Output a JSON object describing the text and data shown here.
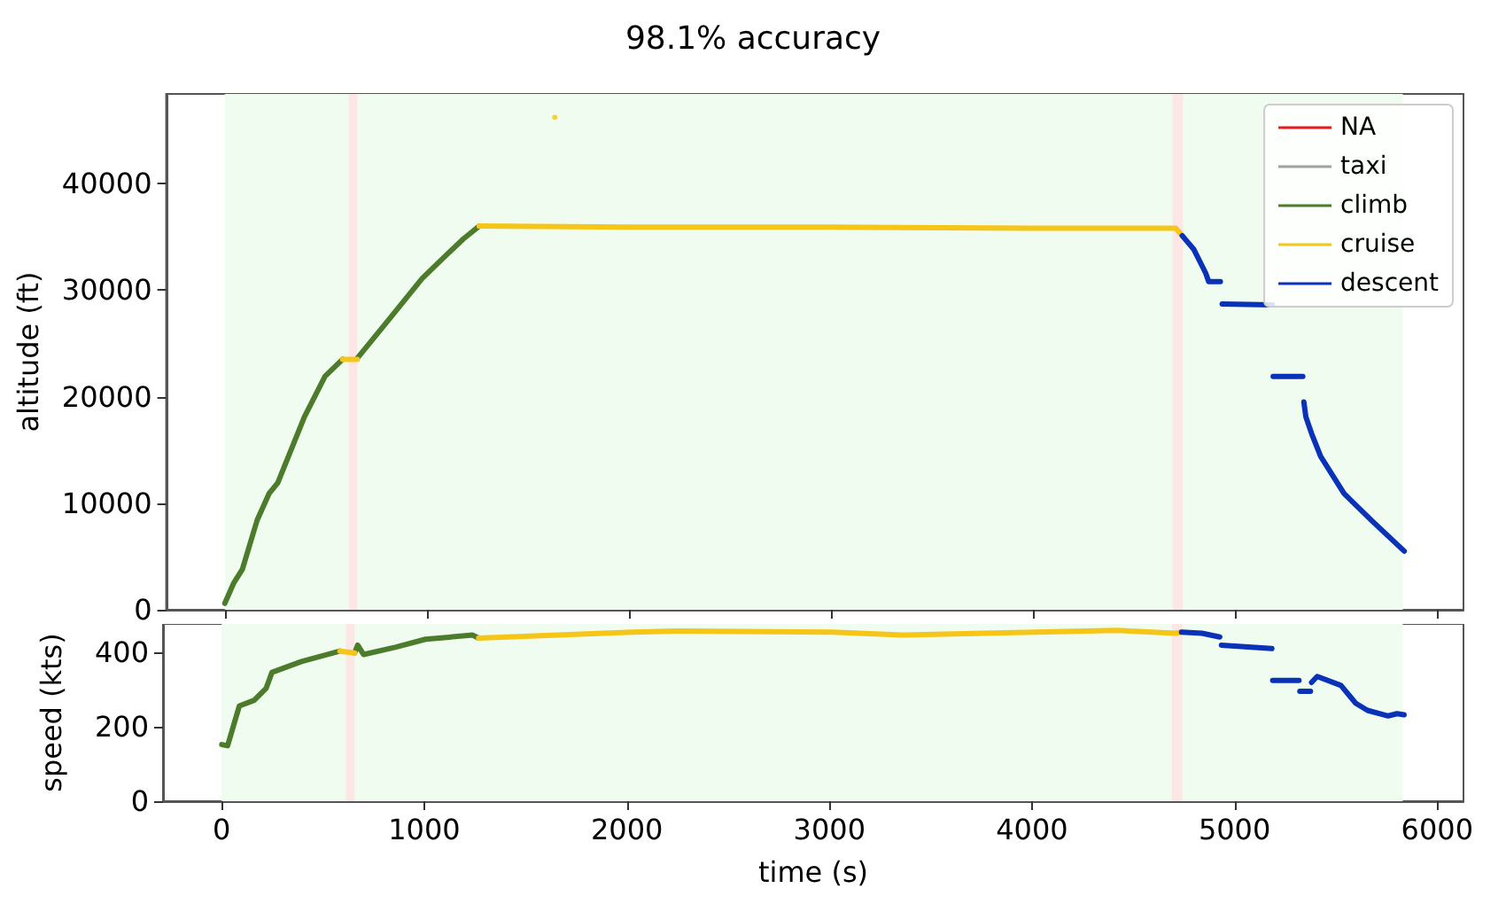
{
  "chart_data": [
    {
      "type": "line",
      "title": "98.1% accuracy",
      "ylabel": "altitude (ft)",
      "xlim": [
        -290,
        6130
      ],
      "ylim": [
        0,
        48400
      ],
      "yticks": [
        0,
        10000,
        20000,
        30000,
        40000
      ],
      "xticks": [
        0,
        1000,
        2000,
        3000,
        4000,
        5000,
        6000
      ],
      "tick_labels": "y",
      "grid": false,
      "legend": "top right",
      "marker": "none",
      "line_style": "solid",
      "bands": [
        {
          "axis": "x",
          "from": 0,
          "to": 5830,
          "color": "#f0fcef"
        },
        {
          "axis": "x",
          "from": 613,
          "to": 656,
          "color": "#fde6e6"
        },
        {
          "axis": "x",
          "from": 4690,
          "to": 4742,
          "color": "#fde6e6"
        }
      ],
      "series": [
        {
          "name": "NA",
          "color": "#e41a1c"
        },
        {
          "name": "taxi",
          "color": "#a0a0a0"
        },
        {
          "name": "climb",
          "color": "#4b7b2b",
          "x": [
            0,
            44,
            87,
            160,
            219,
            262,
            394,
            496,
            583,
            620,
            656,
            802,
            977,
            1064,
            1181,
            1259
          ],
          "values": [
            600,
            2500,
            3800,
            8400,
            10900,
            11900,
            18100,
            21900,
            23500,
            null,
            23600,
            27000,
            31100,
            32700,
            34800,
            36000
          ]
        },
        {
          "name": "cruise",
          "color": "#f5c518",
          "x": [
            583,
            656,
            700,
            1259,
            2000,
            3000,
            4000,
            4706,
            4738
          ],
          "values": [
            23500,
            23500,
            null,
            36000,
            35900,
            35900,
            35800,
            35800,
            35100
          ]
        },
        {
          "type": "scatter",
          "color": "#f5c518",
          "x": [
            1633
          ],
          "values": [
            46200
          ]
        },
        {
          "name": "descent",
          "color": "#0a32b8",
          "x": [
            4738,
            4796,
            4854,
            4869,
            4927,
            4931,
            4936,
            5184,
            5186,
            5188,
            5335,
            5337,
            5340,
            5350,
            5379,
            5423,
            5539,
            5685,
            5837
          ],
          "values": [
            35100,
            33800,
            31600,
            30800,
            30800,
            null,
            28700,
            28600,
            null,
            21900,
            21900,
            null,
            19500,
            18100,
            16500,
            14400,
            10900,
            8200,
            5500
          ]
        }
      ]
    },
    {
      "type": "line",
      "ylabel": "speed (kts)",
      "xlabel": "time (s)",
      "xlim": [
        -290,
        6130
      ],
      "ylim": [
        0,
        476
      ],
      "yticks": [
        0,
        200,
        400
      ],
      "xticks": [
        0,
        1000,
        2000,
        3000,
        4000,
        5000,
        6000
      ],
      "grid": false,
      "marker": "none",
      "line_style": "solid",
      "bands": [
        {
          "axis": "x",
          "from": 0,
          "to": 5830,
          "color": "#f0fcef"
        },
        {
          "axis": "x",
          "from": 613,
          "to": 656,
          "color": "#fde6e6"
        },
        {
          "axis": "x",
          "from": 4690,
          "to": 4742,
          "color": "#fde6e6"
        }
      ],
      "series": [
        {
          "color": "#4b7b2b",
          "x": [
            0,
            29,
            87,
            160,
            219,
            248,
            394,
            583,
            620,
            656,
            671,
            700,
            860,
            1006,
            1239,
            1268
          ],
          "values": [
            152,
            149,
            256,
            271,
            303,
            346,
            375,
            403,
            null,
            398,
            419,
            394,
            414,
            435,
            446,
            438
          ]
        },
        {
          "color": "#f5c518",
          "x": [
            583,
            656,
            665,
            1268,
            2026,
            2259,
            3017,
            3367,
            4417,
            4708,
            4738
          ],
          "values": [
            403,
            398,
            null,
            438,
            454,
            457,
            454,
            446,
            459,
            451,
            454
          ]
        },
        {
          "color": "#0a32b8",
          "x": [
            4738,
            4839,
            4927,
            4930,
            4935,
            5184,
            5186,
            5188,
            5318,
            5320,
            5322,
            5375,
            5377,
            5380,
            5408,
            5525,
            5598,
            5656,
            5758,
            5802,
            5837
          ],
          "values": [
            454,
            451,
            441,
            null,
            419,
            410,
            null,
            324,
            324,
            null,
            295,
            295,
            null,
            319,
            335,
            311,
            263,
            244,
            229,
            235,
            232
          ]
        }
      ]
    }
  ]
}
